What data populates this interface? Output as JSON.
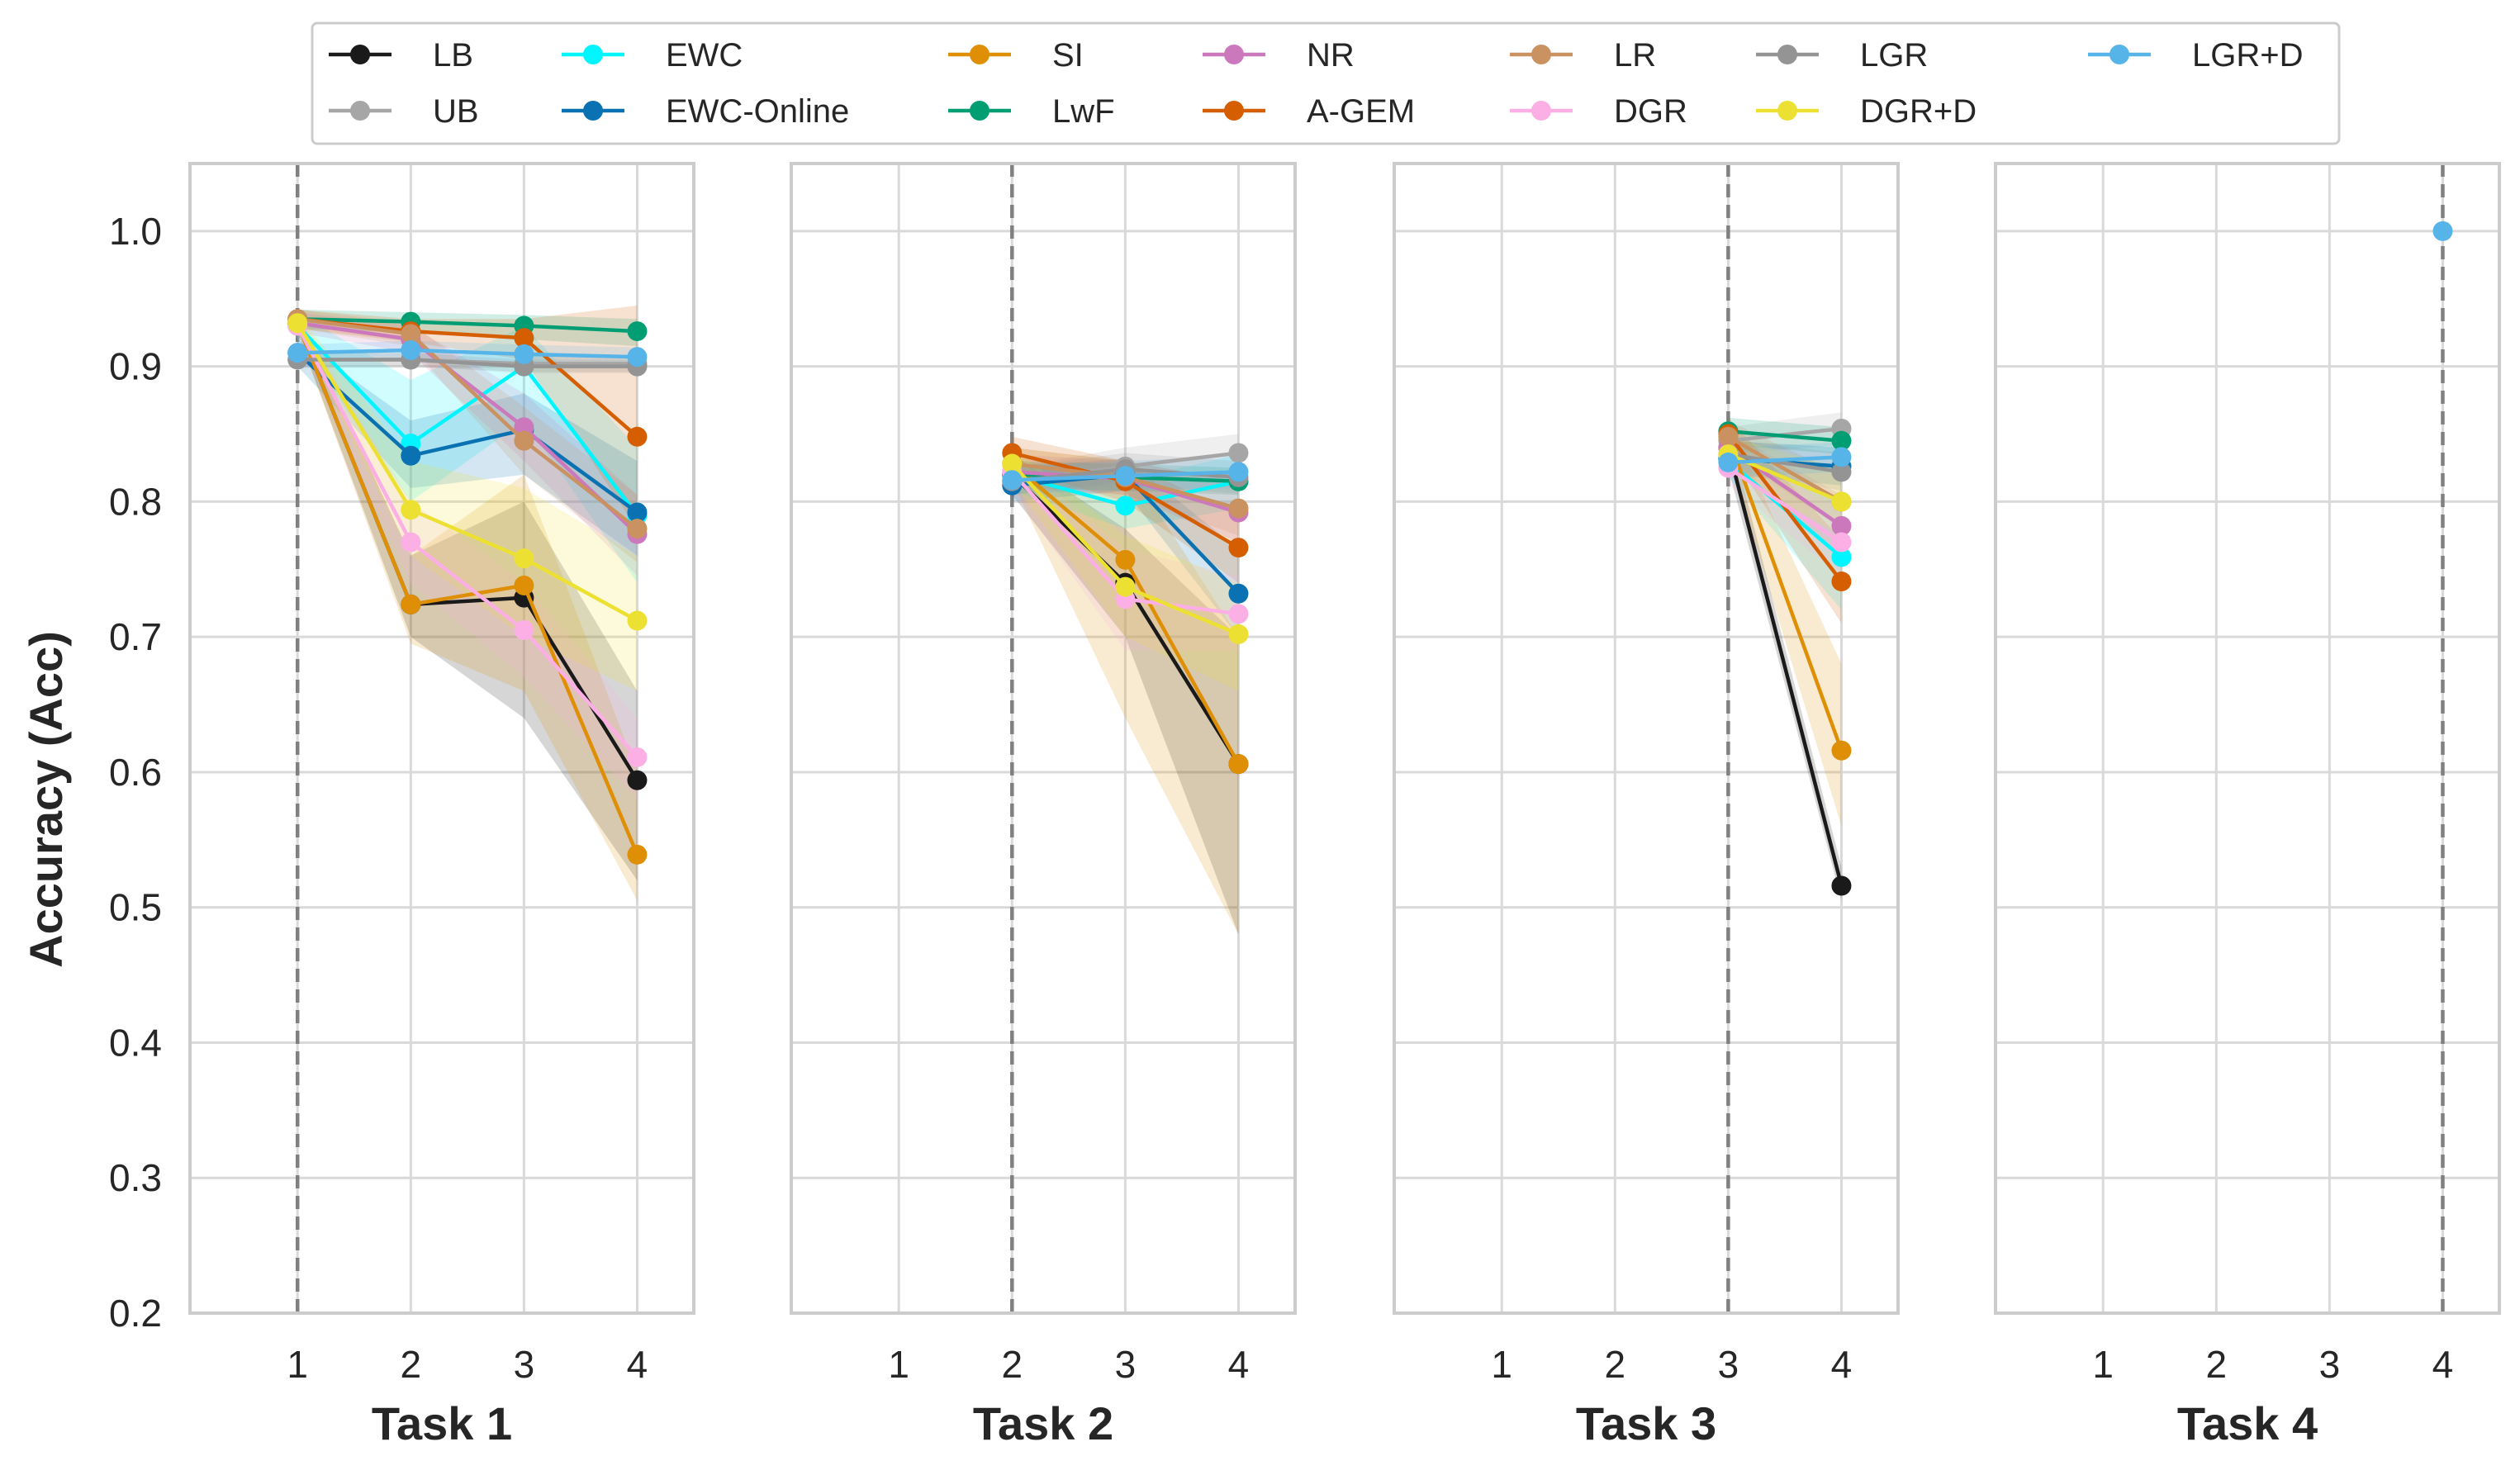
{
  "chart_data": {
    "type": "line",
    "ylabel": "Accuracy (Acc)",
    "ylim": [
      0.2,
      1.05
    ],
    "yticks": [
      0.2,
      0.3,
      0.4,
      0.5,
      0.6,
      0.7,
      0.8,
      0.9,
      1.0
    ],
    "ytick_labels": [
      "0.2",
      "0.3",
      "0.4",
      "0.5",
      "0.6",
      "0.7",
      "0.8",
      "0.9",
      "1.0"
    ],
    "xticks": [
      1,
      2,
      3,
      4
    ],
    "xtick_labels": [
      "1",
      "2",
      "3",
      "4"
    ],
    "grid": true,
    "legend_position": "top",
    "legend": [
      {
        "name": "LB",
        "color": "#1a1a1a"
      },
      {
        "name": "UB",
        "color": "#a6a6a6"
      },
      {
        "name": "EWC",
        "color": "#00f5ff"
      },
      {
        "name": "EWC-Online",
        "color": "#0a72b2"
      },
      {
        "name": "SI",
        "color": "#de8f05"
      },
      {
        "name": "LwF",
        "color": "#029e73"
      },
      {
        "name": "NR",
        "color": "#cc78bc"
      },
      {
        "name": "A-GEM",
        "color": "#d55e00"
      },
      {
        "name": "LR",
        "color": "#ca9161"
      },
      {
        "name": "DGR",
        "color": "#fbafe4"
      },
      {
        "name": "LGR",
        "color": "#949494"
      },
      {
        "name": "DGR+D",
        "color": "#ece133"
      },
      {
        "name": "LGR+D",
        "color": "#56b4e9"
      }
    ],
    "panels": [
      {
        "title": "Task 1",
        "start": 1,
        "series": [
          {
            "name": "LB",
            "x": [
              1,
              2,
              3,
              4
            ],
            "values": [
              0.932,
              0.724,
              0.729,
              0.594
            ],
            "lower": [
              0.925,
              0.7,
              0.64,
              0.52
            ],
            "upper": [
              0.94,
              0.76,
              0.8,
              0.66
            ]
          },
          {
            "name": "UB",
            "x": [
              1,
              2,
              3,
              4
            ],
            "values": [
              0.905,
              0.905,
              0.902,
              0.902
            ],
            "lower": [
              0.9,
              0.9,
              0.896,
              0.896
            ],
            "upper": [
              0.91,
              0.91,
              0.908,
              0.908
            ]
          },
          {
            "name": "EWC",
            "x": [
              1,
              2,
              3,
              4
            ],
            "values": [
              0.93,
              0.843,
              0.9,
              0.79
            ],
            "lower": [
              0.92,
              0.8,
              0.86,
              0.74
            ],
            "upper": [
              0.94,
              0.89,
              0.93,
              0.84
            ]
          },
          {
            "name": "EWC-Online",
            "x": [
              1,
              2,
              3,
              4
            ],
            "values": [
              0.91,
              0.834,
              0.853,
              0.792
            ],
            "lower": [
              0.9,
              0.81,
              0.82,
              0.76
            ],
            "upper": [
              0.92,
              0.86,
              0.88,
              0.83
            ]
          },
          {
            "name": "SI",
            "x": [
              1,
              2,
              3,
              4
            ],
            "values": [
              0.932,
              0.724,
              0.738,
              0.539
            ],
            "lower": [
              0.925,
              0.695,
              0.66,
              0.505
            ],
            "upper": [
              0.94,
              0.76,
              0.82,
              0.6
            ]
          },
          {
            "name": "LwF",
            "x": [
              1,
              2,
              3,
              4
            ],
            "values": [
              0.935,
              0.933,
              0.93,
              0.926
            ],
            "lower": [
              0.928,
              0.925,
              0.92,
              0.915
            ],
            "upper": [
              0.942,
              0.94,
              0.938,
              0.935
            ]
          },
          {
            "name": "NR",
            "x": [
              1,
              2,
              3,
              4
            ],
            "values": [
              0.932,
              0.92,
              0.855,
              0.776
            ],
            "lower": [
              0.925,
              0.91,
              0.83,
              0.745
            ],
            "upper": [
              0.94,
              0.93,
              0.88,
              0.805
            ]
          },
          {
            "name": "A-GEM",
            "x": [
              1,
              2,
              3,
              4
            ],
            "values": [
              0.935,
              0.926,
              0.921,
              0.848
            ],
            "lower": [
              0.928,
              0.918,
              0.905,
              0.78
            ],
            "upper": [
              0.942,
              0.935,
              0.935,
              0.945
            ]
          },
          {
            "name": "LR",
            "x": [
              1,
              2,
              3,
              4
            ],
            "values": [
              0.935,
              0.924,
              0.845,
              0.78
            ],
            "lower": [
              0.928,
              0.915,
              0.82,
              0.755
            ],
            "upper": [
              0.942,
              0.932,
              0.87,
              0.805
            ]
          },
          {
            "name": "DGR",
            "x": [
              1,
              2,
              3,
              4
            ],
            "values": [
              0.93,
              0.77,
              0.705,
              0.611
            ],
            "lower": [
              0.92,
              0.74,
              0.67,
              0.58
            ],
            "upper": [
              0.94,
              0.8,
              0.74,
              0.64
            ]
          },
          {
            "name": "LGR",
            "x": [
              1,
              2,
              3,
              4
            ],
            "values": [
              0.905,
              0.905,
              0.9,
              0.9
            ],
            "lower": [
              0.9,
              0.9,
              0.895,
              0.895
            ],
            "upper": [
              0.91,
              0.91,
              0.905,
              0.905
            ]
          },
          {
            "name": "DGR+D",
            "x": [
              1,
              2,
              3,
              4
            ],
            "values": [
              0.932,
              0.794,
              0.758,
              0.712
            ],
            "lower": [
              0.925,
              0.76,
              0.7,
              0.66
            ],
            "upper": [
              0.94,
              0.83,
              0.81,
              0.76
            ]
          },
          {
            "name": "LGR+D",
            "x": [
              1,
              2,
              3,
              4
            ],
            "values": [
              0.91,
              0.912,
              0.909,
              0.907
            ],
            "lower": [
              0.904,
              0.905,
              0.902,
              0.9
            ],
            "upper": [
              0.916,
              0.919,
              0.916,
              0.914
            ]
          }
        ]
      },
      {
        "title": "Task 2",
        "start": 2,
        "series": [
          {
            "name": "LB",
            "x": [
              2,
              3,
              4
            ],
            "values": [
              0.82,
              0.74,
              0.606
            ],
            "lower": [
              0.805,
              0.7,
              0.48
            ],
            "upper": [
              0.835,
              0.78,
              0.7
            ]
          },
          {
            "name": "UB",
            "x": [
              2,
              3,
              4
            ],
            "values": [
              0.815,
              0.826,
              0.836
            ],
            "lower": [
              0.805,
              0.815,
              0.82
            ],
            "upper": [
              0.825,
              0.84,
              0.85
            ]
          },
          {
            "name": "EWC",
            "x": [
              2,
              3,
              4
            ],
            "values": [
              0.82,
              0.797,
              0.815
            ],
            "lower": [
              0.808,
              0.78,
              0.795
            ],
            "upper": [
              0.832,
              0.815,
              0.835
            ]
          },
          {
            "name": "EWC-Online",
            "x": [
              2,
              3,
              4
            ],
            "values": [
              0.812,
              0.82,
              0.732
            ],
            "lower": [
              0.8,
              0.808,
              0.7
            ],
            "upper": [
              0.825,
              0.832,
              0.765
            ]
          },
          {
            "name": "SI",
            "x": [
              2,
              3,
              4
            ],
            "values": [
              0.828,
              0.757,
              0.606
            ],
            "lower": [
              0.815,
              0.64,
              0.48
            ],
            "upper": [
              0.84,
              0.83,
              0.7
            ]
          },
          {
            "name": "LwF",
            "x": [
              2,
              3,
              4
            ],
            "values": [
              0.82,
              0.818,
              0.815
            ],
            "lower": [
              0.81,
              0.808,
              0.805
            ],
            "upper": [
              0.83,
              0.828,
              0.825
            ]
          },
          {
            "name": "NR",
            "x": [
              2,
              3,
              4
            ],
            "values": [
              0.822,
              0.817,
              0.792
            ],
            "lower": [
              0.81,
              0.805,
              0.77
            ],
            "upper": [
              0.835,
              0.83,
              0.815
            ]
          },
          {
            "name": "A-GEM",
            "x": [
              2,
              3,
              4
            ],
            "values": [
              0.836,
              0.815,
              0.766
            ],
            "lower": [
              0.825,
              0.8,
              0.74
            ],
            "upper": [
              0.848,
              0.83,
              0.79
            ]
          },
          {
            "name": "LR",
            "x": [
              2,
              3,
              4
            ],
            "values": [
              0.828,
              0.818,
              0.795
            ],
            "lower": [
              0.815,
              0.805,
              0.775
            ],
            "upper": [
              0.84,
              0.83,
              0.815
            ]
          },
          {
            "name": "DGR",
            "x": [
              2,
              3,
              4
            ],
            "values": [
              0.822,
              0.728,
              0.717
            ],
            "lower": [
              0.808,
              0.69,
              0.69
            ],
            "upper": [
              0.835,
              0.765,
              0.745
            ]
          },
          {
            "name": "LGR",
            "x": [
              2,
              3,
              4
            ],
            "values": [
              0.815,
              0.824,
              0.818
            ],
            "lower": [
              0.805,
              0.812,
              0.806
            ],
            "upper": [
              0.825,
              0.836,
              0.83
            ]
          },
          {
            "name": "DGR+D",
            "x": [
              2,
              3,
              4
            ],
            "values": [
              0.828,
              0.737,
              0.702
            ],
            "lower": [
              0.815,
              0.7,
              0.66
            ],
            "upper": [
              0.84,
              0.775,
              0.74
            ]
          },
          {
            "name": "LGR+D",
            "x": [
              2,
              3,
              4
            ],
            "values": [
              0.816,
              0.819,
              0.822
            ],
            "lower": [
              0.806,
              0.808,
              0.81
            ],
            "upper": [
              0.826,
              0.83,
              0.834
            ]
          }
        ]
      },
      {
        "title": "Task 3",
        "start": 3,
        "series": [
          {
            "name": "LB",
            "x": [
              3,
              4
            ],
            "values": [
              0.84,
              0.516
            ],
            "lower": [
              0.825,
              0.505
            ],
            "upper": [
              0.855,
              0.53
            ]
          },
          {
            "name": "UB",
            "x": [
              3,
              4
            ],
            "values": [
              0.845,
              0.854
            ],
            "lower": [
              0.835,
              0.842
            ],
            "upper": [
              0.855,
              0.866
            ]
          },
          {
            "name": "EWC",
            "x": [
              3,
              4
            ],
            "values": [
              0.83,
              0.759
            ],
            "lower": [
              0.818,
              0.72
            ],
            "upper": [
              0.842,
              0.8
            ]
          },
          {
            "name": "EWC-Online",
            "x": [
              3,
              4
            ],
            "values": [
              0.832,
              0.826
            ],
            "lower": [
              0.82,
              0.812
            ],
            "upper": [
              0.845,
              0.84
            ]
          },
          {
            "name": "SI",
            "x": [
              3,
              4
            ],
            "values": [
              0.848,
              0.616
            ],
            "lower": [
              0.835,
              0.56
            ],
            "upper": [
              0.86,
              0.68
            ]
          },
          {
            "name": "LwF",
            "x": [
              3,
              4
            ],
            "values": [
              0.852,
              0.845
            ],
            "lower": [
              0.842,
              0.835
            ],
            "upper": [
              0.862,
              0.855
            ]
          },
          {
            "name": "NR",
            "x": [
              3,
              4
            ],
            "values": [
              0.84,
              0.782
            ],
            "lower": [
              0.828,
              0.76
            ],
            "upper": [
              0.852,
              0.805
            ]
          },
          {
            "name": "A-GEM",
            "x": [
              3,
              4
            ],
            "values": [
              0.85,
              0.741
            ],
            "lower": [
              0.838,
              0.71
            ],
            "upper": [
              0.862,
              0.772
            ]
          },
          {
            "name": "LR",
            "x": [
              3,
              4
            ],
            "values": [
              0.848,
              0.8
            ],
            "lower": [
              0.836,
              0.78
            ],
            "upper": [
              0.86,
              0.82
            ]
          },
          {
            "name": "DGR",
            "x": [
              3,
              4
            ],
            "values": [
              0.825,
              0.77
            ],
            "lower": [
              0.812,
              0.745
            ],
            "upper": [
              0.838,
              0.795
            ]
          },
          {
            "name": "LGR",
            "x": [
              3,
              4
            ],
            "values": [
              0.835,
              0.822
            ],
            "lower": [
              0.824,
              0.808
            ],
            "upper": [
              0.846,
              0.836
            ]
          },
          {
            "name": "DGR+D",
            "x": [
              3,
              4
            ],
            "values": [
              0.835,
              0.8
            ],
            "lower": [
              0.822,
              0.775
            ],
            "upper": [
              0.848,
              0.825
            ]
          },
          {
            "name": "LGR+D",
            "x": [
              3,
              4
            ],
            "values": [
              0.829,
              0.833
            ],
            "lower": [
              0.818,
              0.822
            ],
            "upper": [
              0.84,
              0.844
            ]
          }
        ]
      },
      {
        "title": "Task 4",
        "start": 4,
        "series": [
          {
            "name": "LGR+D",
            "x": [
              4
            ],
            "values": [
              1.0
            ],
            "lower": [
              1.0
            ],
            "upper": [
              1.0
            ]
          }
        ]
      }
    ]
  }
}
